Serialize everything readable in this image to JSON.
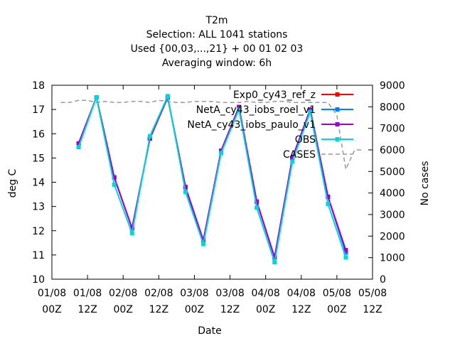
{
  "chart_data": {
    "type": "line",
    "title_lines": [
      "T2m",
      "Selection: ALL   1041 stations",
      "Used {00,03,...,21} + 00 01 02 03",
      "Averaging window:  6h"
    ],
    "xlabel": "Date",
    "ylabel": "deg C",
    "y2label": "No cases",
    "xlim": [
      0,
      108
    ],
    "ylim": [
      10,
      18
    ],
    "y2lim": [
      0,
      9000
    ],
    "x_ticks": [
      {
        "value": 0,
        "line1": "01/08",
        "line2": "00Z"
      },
      {
        "value": 12,
        "line1": "01/08",
        "line2": "12Z"
      },
      {
        "value": 24,
        "line1": "02/08",
        "line2": "00Z"
      },
      {
        "value": 36,
        "line1": "02/08",
        "line2": "12Z"
      },
      {
        "value": 48,
        "line1": "03/08",
        "line2": "00Z"
      },
      {
        "value": 60,
        "line1": "03/08",
        "line2": "12Z"
      },
      {
        "value": 72,
        "line1": "04/08",
        "line2": "00Z"
      },
      {
        "value": 84,
        "line1": "04/08",
        "line2": "12Z"
      },
      {
        "value": 96,
        "line1": "05/08",
        "line2": "00Z"
      },
      {
        "value": 108,
        "line1": "05/08",
        "line2": "12Z"
      }
    ],
    "y_ticks": [
      "10",
      "11",
      "12",
      "13",
      "14",
      "15",
      "16",
      "17",
      "18"
    ],
    "y2_ticks": [
      "0",
      "1000",
      "2000",
      "3000",
      "4000",
      "5000",
      "6000",
      "7000",
      "8000",
      "9000"
    ],
    "x": [
      9,
      15,
      21,
      27,
      33,
      39,
      45,
      51,
      57,
      63,
      69,
      75,
      81,
      87,
      93,
      99
    ],
    "series": [
      {
        "name": "Exp0_cy43_ref_z",
        "color": "#ff0000",
        "values": [
          15.6,
          17.5,
          14.2,
          12.1,
          15.8,
          17.5,
          13.8,
          11.6,
          15.3,
          17.1,
          13.2,
          10.9,
          15.0,
          17.0,
          13.4,
          11.1
        ]
      },
      {
        "name": "NetA_cy43_iobs_roel_v1",
        "color": "#0080ff",
        "values": [
          15.6,
          17.5,
          14.2,
          12.1,
          15.8,
          17.5,
          13.8,
          11.6,
          15.3,
          17.1,
          13.2,
          10.9,
          15.0,
          17.0,
          13.4,
          11.1
        ]
      },
      {
        "name": "NetA_cy43_iobs_paulo_v1",
        "color": "#a000d8",
        "values": [
          15.6,
          17.5,
          14.2,
          12.1,
          15.8,
          17.5,
          13.8,
          11.6,
          15.3,
          17.1,
          13.2,
          10.9,
          15.0,
          17.0,
          13.4,
          11.2
        ]
      },
      {
        "name": "OBS",
        "color": "#00d8d8",
        "values": [
          15.45,
          17.5,
          13.9,
          11.9,
          15.9,
          17.55,
          13.6,
          11.45,
          15.2,
          17.0,
          12.95,
          10.7,
          14.85,
          16.9,
          13.1,
          10.9
        ]
      }
    ],
    "cases": {
      "name": "CASES",
      "color": "#999999",
      "x": [
        3,
        6,
        9,
        12,
        15,
        18,
        21,
        24,
        27,
        30,
        33,
        36,
        39,
        42,
        45,
        48,
        51,
        54,
        57,
        60,
        63,
        66,
        69,
        72,
        75,
        78,
        81,
        84,
        87,
        90,
        93,
        96,
        99,
        102,
        105
      ],
      "values": [
        8200,
        8200,
        8300,
        8300,
        8200,
        8250,
        8200,
        8200,
        8250,
        8250,
        8200,
        8300,
        8250,
        8200,
        8200,
        8250,
        8250,
        8250,
        8200,
        8200,
        8200,
        8250,
        8200,
        8200,
        8250,
        8250,
        8200,
        8200,
        8200,
        8200,
        8200,
        7600,
        5100,
        6000,
        6000
      ]
    },
    "legend_position": "top-right",
    "grid": false
  }
}
